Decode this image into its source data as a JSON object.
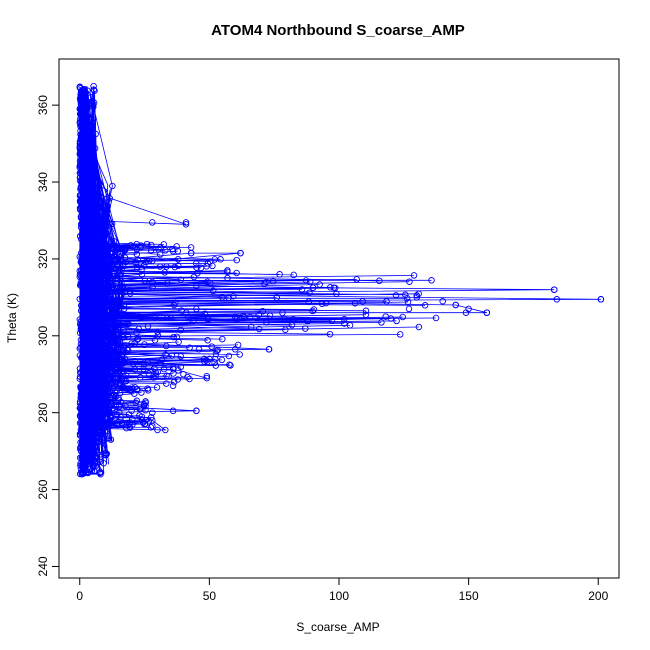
{
  "chart_data": {
    "type": "scatter",
    "title": "ATOM4 Northbound S_coarse_AMP",
    "xlabel": "S_coarse_AMP",
    "ylabel": "Theta (K)",
    "xlim": [
      -8,
      208
    ],
    "ylim": [
      237,
      372
    ],
    "xticks": [
      0,
      50,
      100,
      150,
      200
    ],
    "yticks": [
      240,
      260,
      280,
      300,
      320,
      340,
      360
    ],
    "grid": false,
    "legend": "none",
    "marker": "open-circle",
    "connected": true,
    "series_color": "#0000ff",
    "trace_points": [
      [
        1.2,
        364
      ],
      [
        0.6,
        358
      ],
      [
        1.5,
        350
      ],
      [
        0.9,
        342
      ],
      [
        2.2,
        338
      ],
      [
        41,
        329
      ],
      [
        1.8,
        330
      ],
      [
        3.5,
        326
      ],
      [
        9,
        327
      ],
      [
        16,
        322
      ],
      [
        1.1,
        319
      ],
      [
        43,
        321.5
      ],
      [
        62,
        321.5
      ],
      [
        5,
        318
      ],
      [
        2.2,
        316
      ],
      [
        28,
        314
      ],
      [
        45,
        313
      ],
      [
        90,
        312.5
      ],
      [
        183,
        312
      ],
      [
        3,
        311
      ],
      [
        130,
        310
      ],
      [
        201,
        309.5
      ],
      [
        2.8,
        309
      ],
      [
        95,
        308.5
      ],
      [
        145,
        308
      ],
      [
        157,
        306
      ],
      [
        1.5,
        306
      ],
      [
        60,
        305
      ],
      [
        120,
        304.5
      ],
      [
        4,
        303
      ],
      [
        30,
        301
      ],
      [
        2,
        300
      ],
      [
        20,
        298
      ],
      [
        73,
        296.5
      ],
      [
        3,
        296
      ],
      [
        50,
        294
      ],
      [
        2,
        292
      ],
      [
        38,
        291
      ],
      [
        49,
        289
      ],
      [
        1.4,
        288
      ],
      [
        22,
        286
      ],
      [
        5,
        284
      ],
      [
        2,
        282
      ],
      [
        45,
        280.5
      ],
      [
        2.5,
        280
      ],
      [
        28,
        278
      ],
      [
        33,
        275.5
      ],
      [
        3,
        276
      ],
      [
        12,
        273
      ],
      [
        2,
        270
      ],
      [
        10,
        269.5
      ],
      [
        1.5,
        268
      ],
      [
        6,
        266
      ],
      [
        3,
        264.5
      ],
      [
        8,
        264
      ],
      [
        0.8,
        264
      ]
    ],
    "outliers": [
      [
        28,
        329.5
      ],
      [
        41,
        329.5
      ],
      [
        36,
        322
      ],
      [
        62,
        321.5
      ],
      [
        43,
        321.5
      ],
      [
        28,
        319.5
      ],
      [
        31,
        318
      ],
      [
        57,
        315
      ],
      [
        72,
        314
      ],
      [
        90,
        312.5
      ],
      [
        98,
        312.5
      ],
      [
        183,
        312
      ],
      [
        130,
        310.5
      ],
      [
        122,
        310.5
      ],
      [
        201,
        309.5
      ],
      [
        184,
        309.5
      ],
      [
        145,
        308
      ],
      [
        140,
        309
      ],
      [
        150,
        307
      ],
      [
        157,
        306
      ],
      [
        149,
        306
      ],
      [
        127,
        307
      ],
      [
        118,
        305
      ],
      [
        88,
        304
      ],
      [
        72,
        303.5
      ],
      [
        60,
        305
      ],
      [
        45,
        307
      ],
      [
        73,
        296.5
      ],
      [
        60,
        296.5
      ],
      [
        46,
        296.5
      ],
      [
        48,
        294
      ],
      [
        52,
        293
      ],
      [
        40,
        290
      ],
      [
        49,
        289.5
      ],
      [
        36,
        287
      ],
      [
        45,
        280.5
      ],
      [
        36,
        280.5
      ],
      [
        28,
        280
      ],
      [
        20,
        280.5
      ],
      [
        28,
        276.5
      ],
      [
        30,
        275.5
      ],
      [
        18,
        276
      ],
      [
        10,
        269.5
      ],
      [
        6,
        271
      ],
      [
        8,
        264.5
      ]
    ]
  }
}
